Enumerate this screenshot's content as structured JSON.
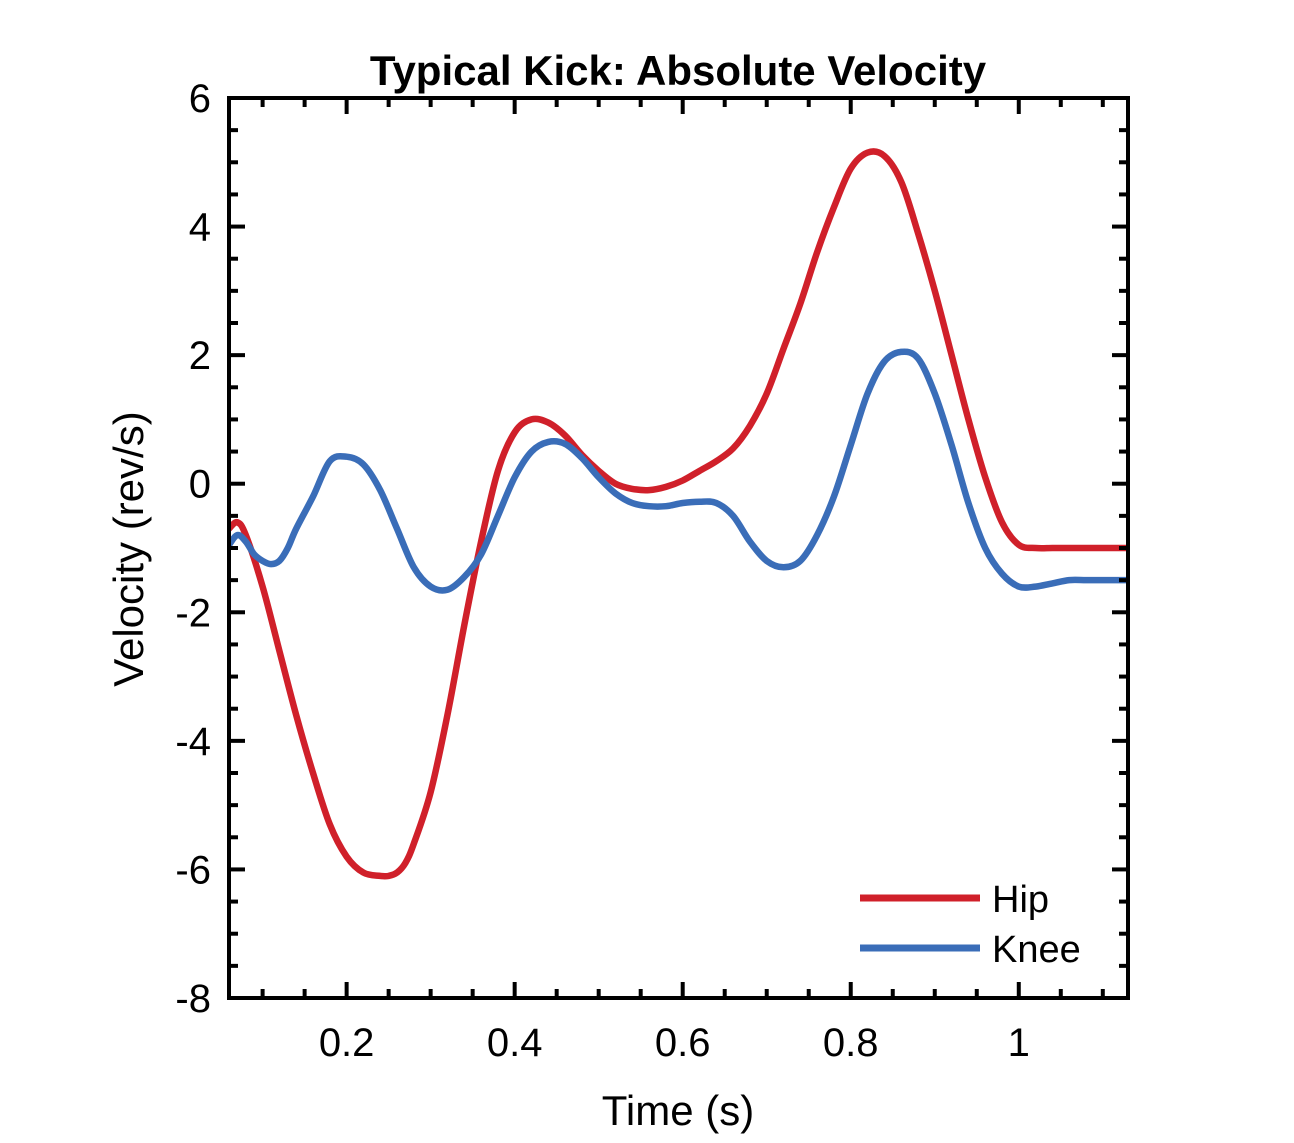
{
  "chart_data": {
    "type": "line",
    "title": "Typical Kick: Absolute Velocity",
    "xlabel": "Time (s)",
    "ylabel": "Velocity (rev/s)",
    "xlim": [
      0.06,
      1.13
    ],
    "ylim": [
      -8,
      6
    ],
    "xticks": [
      0.2,
      0.4,
      0.6,
      0.8,
      1
    ],
    "xtick_labels": [
      "0.2",
      "0.4",
      "0.6",
      "0.8",
      "1"
    ],
    "yticks": [
      -8,
      -6,
      -4,
      -2,
      0,
      2,
      4,
      6
    ],
    "ytick_labels": [
      "-8",
      "-6",
      "-4",
      "-2",
      "0",
      "2",
      "4",
      "6"
    ],
    "grid": false,
    "legend_position": "bottom-right",
    "series": [
      {
        "name": "Hip",
        "color": "#d0202a",
        "x": [
          0.06,
          0.07,
          0.08,
          0.1,
          0.12,
          0.14,
          0.16,
          0.18,
          0.2,
          0.22,
          0.24,
          0.25,
          0.26,
          0.27,
          0.28,
          0.3,
          0.32,
          0.34,
          0.36,
          0.38,
          0.4,
          0.42,
          0.44,
          0.46,
          0.48,
          0.5,
          0.52,
          0.54,
          0.56,
          0.58,
          0.6,
          0.62,
          0.64,
          0.66,
          0.68,
          0.7,
          0.72,
          0.74,
          0.76,
          0.78,
          0.8,
          0.82,
          0.84,
          0.86,
          0.88,
          0.9,
          0.92,
          0.94,
          0.96,
          0.98,
          1.0,
          1.02,
          1.04,
          1.06,
          1.08,
          1.1,
          1.12,
          1.13
        ],
        "y": [
          -0.7,
          -0.6,
          -0.8,
          -1.6,
          -2.6,
          -3.6,
          -4.5,
          -5.3,
          -5.8,
          -6.05,
          -6.1,
          -6.1,
          -6.05,
          -5.9,
          -5.6,
          -4.8,
          -3.6,
          -2.2,
          -0.9,
          0.2,
          0.8,
          1.0,
          0.95,
          0.75,
          0.45,
          0.2,
          0.0,
          -0.08,
          -0.1,
          -0.05,
          0.05,
          0.2,
          0.35,
          0.55,
          0.9,
          1.4,
          2.1,
          2.8,
          3.6,
          4.3,
          4.9,
          5.15,
          5.1,
          4.7,
          3.9,
          3.0,
          2.0,
          1.0,
          0.1,
          -0.6,
          -0.95,
          -1.0,
          -1.0,
          -1.0,
          -1.0,
          -1.0,
          -1.0,
          -1.0
        ],
        "x_note": ""
      },
      {
        "name": "Knee",
        "color": "#3a6db8",
        "x": [
          0.06,
          0.07,
          0.08,
          0.09,
          0.1,
          0.11,
          0.12,
          0.13,
          0.14,
          0.16,
          0.18,
          0.2,
          0.22,
          0.24,
          0.26,
          0.28,
          0.3,
          0.32,
          0.34,
          0.36,
          0.38,
          0.4,
          0.42,
          0.44,
          0.46,
          0.48,
          0.5,
          0.52,
          0.54,
          0.56,
          0.58,
          0.6,
          0.62,
          0.64,
          0.66,
          0.68,
          0.7,
          0.72,
          0.74,
          0.76,
          0.78,
          0.8,
          0.82,
          0.84,
          0.86,
          0.88,
          0.9,
          0.92,
          0.94,
          0.96,
          0.98,
          1.0,
          1.02,
          1.04,
          1.06,
          1.08,
          1.1,
          1.12,
          1.13
        ],
        "y": [
          -0.95,
          -0.8,
          -0.9,
          -1.1,
          -1.2,
          -1.25,
          -1.2,
          -1.0,
          -0.7,
          -0.2,
          0.35,
          0.42,
          0.3,
          -0.1,
          -0.7,
          -1.3,
          -1.6,
          -1.65,
          -1.45,
          -1.1,
          -0.5,
          0.1,
          0.5,
          0.65,
          0.62,
          0.4,
          0.1,
          -0.15,
          -0.3,
          -0.35,
          -0.35,
          -0.3,
          -0.28,
          -0.3,
          -0.5,
          -0.9,
          -1.2,
          -1.3,
          -1.2,
          -0.8,
          -0.2,
          0.6,
          1.4,
          1.9,
          2.05,
          1.95,
          1.4,
          0.6,
          -0.3,
          -1.0,
          -1.4,
          -1.6,
          -1.6,
          -1.55,
          -1.5,
          -1.5,
          -1.5,
          -1.5,
          -1.5
        ]
      }
    ]
  }
}
